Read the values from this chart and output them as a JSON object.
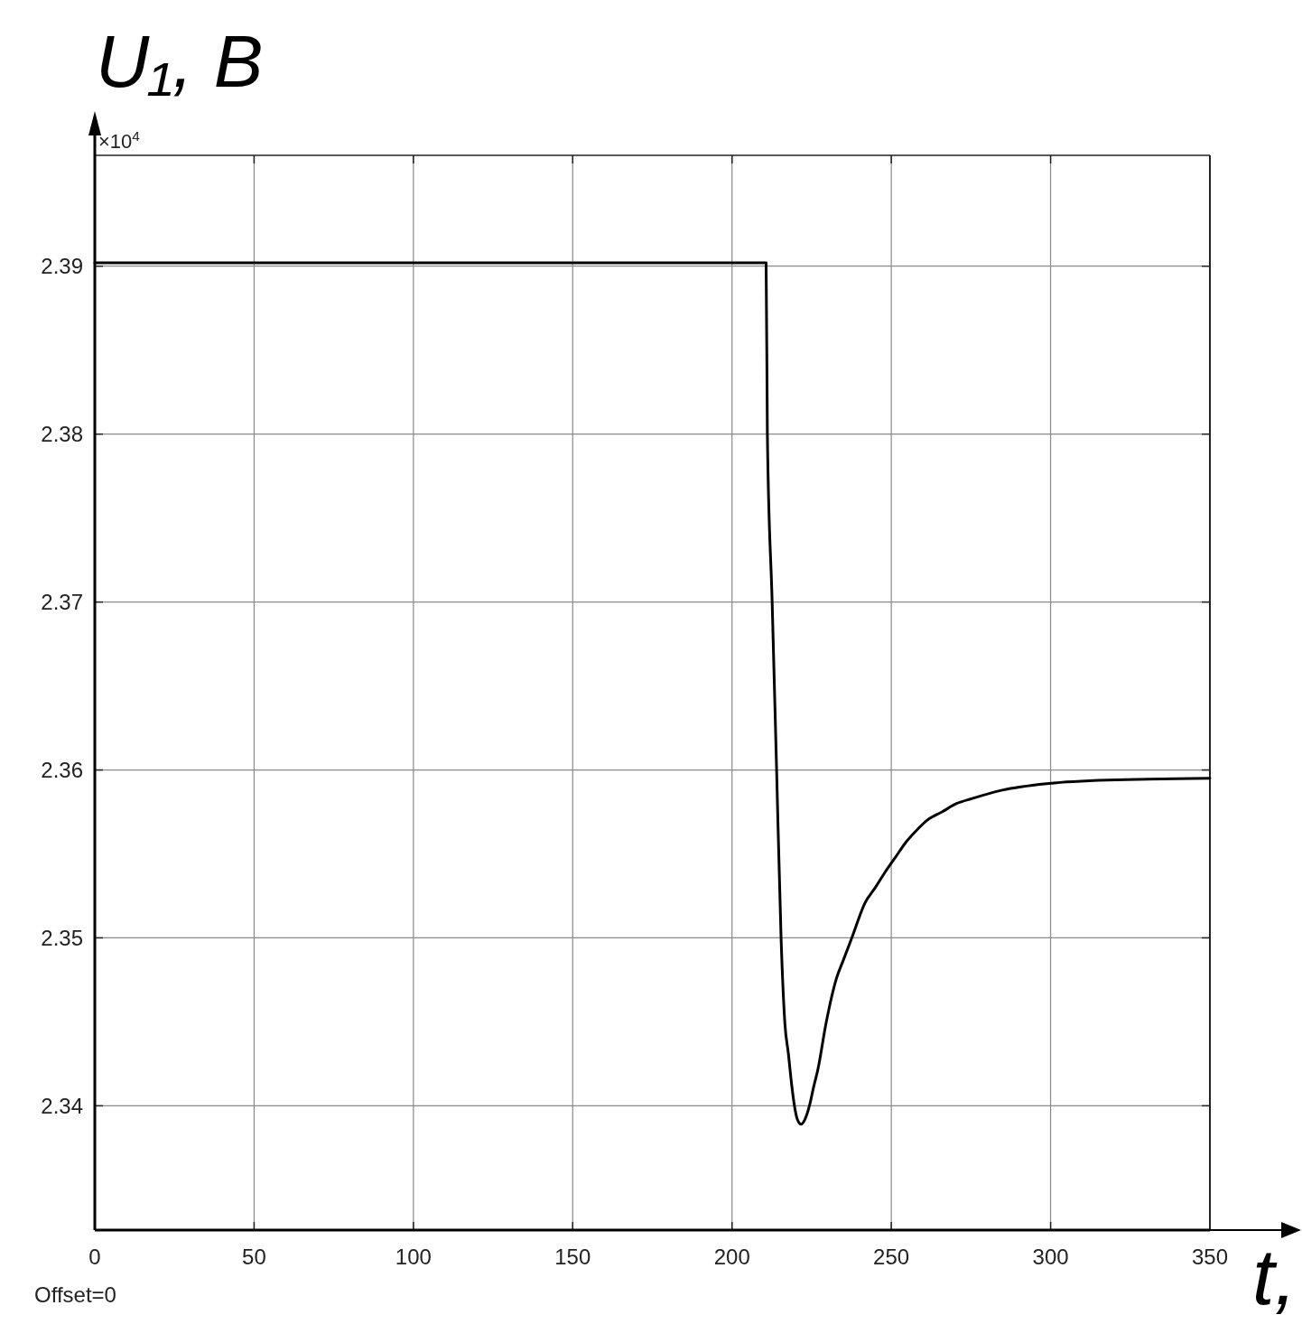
{
  "chart_data": {
    "type": "line",
    "ylabel": "U₁, В",
    "xlabel": "t,",
    "annotations": [
      "×10$^{4}$",
      "Offset=0"
    ],
    "x": [
      0,
      210.7,
      211.1,
      212.6,
      214.0,
      215.4,
      216.6,
      217.7,
      218.7,
      219.6,
      220.5,
      221.7,
      222.9,
      224.3,
      225.6,
      227.0,
      229.5,
      232.8,
      235.0,
      237.6,
      241.8,
      245.0,
      248.0,
      251.3,
      254.6,
      257.9,
      261.2,
      265.9,
      270.5,
      275.4,
      284.8,
      299.5,
      317.9,
      350
    ],
    "series": [
      {
        "color": "#000000",
        "values": [
          2.3902,
          2.3902,
          2.38,
          2.37,
          2.36,
          2.35,
          2.3449,
          2.3431,
          2.3413,
          2.34,
          2.3392,
          2.3389,
          2.3392,
          2.34,
          2.3411,
          2.3422,
          2.3449,
          2.3476,
          2.3487,
          2.35,
          2.3521,
          2.353,
          2.3539,
          2.3548,
          2.3557,
          2.3564,
          2.357,
          2.3575,
          2.358,
          2.3583,
          2.3588,
          2.3592,
          2.3594,
          2.3595
        ]
      }
    ],
    "xlim": [
      0,
      350
    ],
    "xticks": [
      0,
      50,
      100,
      150,
      200,
      250,
      300,
      350
    ],
    "ylim": [
      2.3326,
      2.3966
    ],
    "yticks": [
      2.34,
      2.35,
      2.36,
      2.37,
      2.38,
      2.39
    ],
    "grid": true
  }
}
